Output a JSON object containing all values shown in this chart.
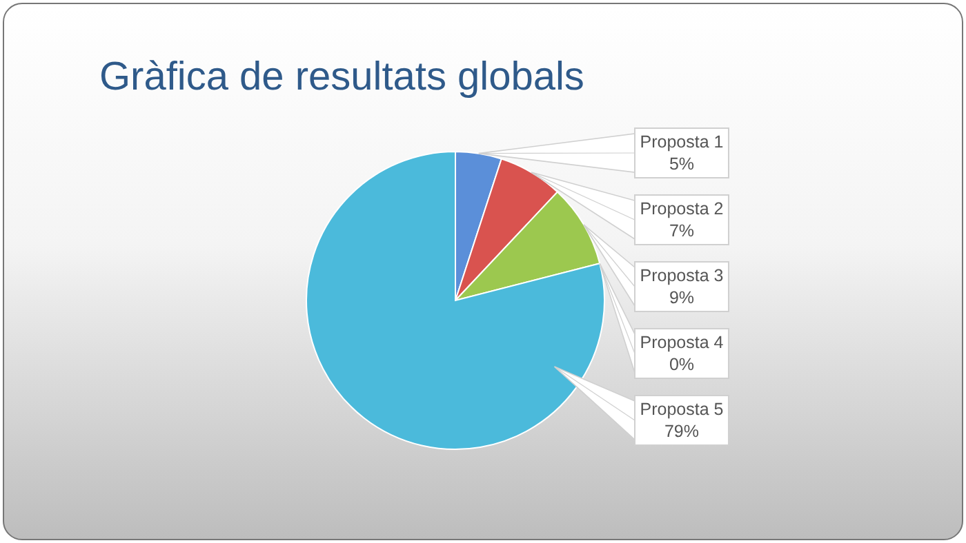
{
  "chart_data": {
    "type": "pie",
    "title": "Gràfica de resultats globals",
    "categories": [
      "Proposta 1",
      "Proposta 2",
      "Proposta 3",
      "Proposta 4",
      "Proposta 5"
    ],
    "values": [
      5,
      7,
      9,
      0,
      79
    ],
    "value_labels": [
      "5%",
      "7%",
      "9%",
      "0%",
      "79%"
    ],
    "colors": [
      "#5b8fd9",
      "#d9534f",
      "#9cc84f",
      "#8064a2",
      "#4bbadb"
    ]
  }
}
